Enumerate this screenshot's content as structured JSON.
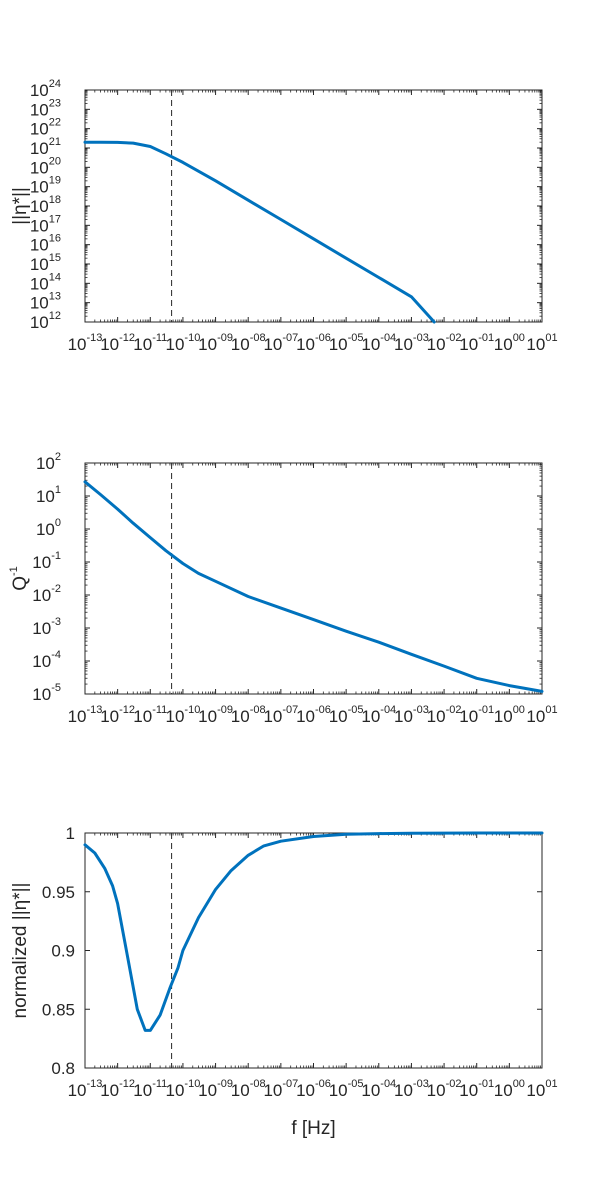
{
  "colors": {
    "series": "#0072bd",
    "axis": "#262626",
    "marker": "#262626",
    "background": "#ffffff"
  },
  "chart_data": [
    {
      "type": "line",
      "xscale": "log",
      "yscale": "log",
      "xlim": [
        1e-13,
        10
      ],
      "ylim": [
        1000000000000.0,
        1e+24
      ],
      "xlabel": "",
      "ylabel": "||η*||",
      "grid": false,
      "vertical_line_x": 4.5e-11,
      "x_tick_labels": [
        "10",
        "10",
        "10",
        "10",
        "10",
        "10",
        "10",
        "10",
        "10",
        "10",
        "10",
        "10",
        "10",
        "10",
        "10"
      ],
      "x_tick_exponents": [
        "-13",
        "-12",
        "-11",
        "-10",
        "-09",
        "-08",
        "-07",
        "-06",
        "-05",
        "-04",
        "-03",
        "-02",
        "-01",
        "00",
        "01"
      ],
      "y_tick_labels": [
        "10",
        "10",
        "10",
        "10",
        "10",
        "10",
        "10",
        "10",
        "10",
        "10",
        "10",
        "10",
        "10"
      ],
      "y_tick_exponents": [
        "12",
        "13",
        "14",
        "15",
        "16",
        "17",
        "18",
        "19",
        "20",
        "21",
        "22",
        "23",
        "24"
      ],
      "series": [
        {
          "x": [
            1e-13,
            3e-13,
            1e-12,
            3e-12,
            1e-11,
            3e-11,
            1e-10,
            1e-09,
            1e-08,
            1e-07,
            1e-06,
            1e-05,
            0.0001,
            0.001,
            0.005
          ],
          "y": [
            2e+21,
            2e+21,
            1.95e+21,
            1.8e+21,
            1.2e+21,
            5e+20,
            1.8e+20,
            2e+19,
            2e+18,
            2e+17,
            2e+16,
            2000000000000000.0,
            200000000000000.0,
            20000000000000.0,
            1000000000000.0
          ]
        }
      ]
    },
    {
      "type": "line",
      "xscale": "log",
      "yscale": "log",
      "xlim": [
        1e-13,
        10
      ],
      "ylim": [
        1e-05,
        100
      ],
      "xlabel": "",
      "ylabel": "Q",
      "ylabel_exponent": "-1",
      "grid": false,
      "vertical_line_x": 4.5e-11,
      "x_tick_labels": [
        "10",
        "10",
        "10",
        "10",
        "10",
        "10",
        "10",
        "10",
        "10",
        "10",
        "10",
        "10",
        "10",
        "10",
        "10"
      ],
      "x_tick_exponents": [
        "-13",
        "-12",
        "-11",
        "-10",
        "-09",
        "-08",
        "-07",
        "-06",
        "-05",
        "-04",
        "-03",
        "-02",
        "-01",
        "00",
        "01"
      ],
      "y_tick_labels": [
        "10",
        "10",
        "10",
        "10",
        "10",
        "10",
        "10",
        "10"
      ],
      "y_tick_exponents": [
        "-5",
        "-4",
        "-3",
        "-2",
        "-1",
        "0",
        "1",
        "2"
      ],
      "series": [
        {
          "x": [
            1e-13,
            3e-13,
            1e-12,
            3e-12,
            1e-11,
            3e-11,
            1e-10,
            3e-10,
            1e-09,
            1e-08,
            1e-07,
            1e-06,
            1e-05,
            0.0001,
            0.001,
            0.01,
            0.1,
            1,
            10
          ],
          "y": [
            27,
            11,
            4,
            1.5,
            0.55,
            0.22,
            0.09,
            0.045,
            0.026,
            0.009,
            0.004,
            0.0018,
            0.0008,
            0.00037,
            0.00016,
            7e-05,
            3e-05,
            1.8e-05,
            1.2e-05
          ]
        }
      ]
    },
    {
      "type": "line",
      "xscale": "log",
      "yscale": "linear",
      "xlim": [
        1e-13,
        10
      ],
      "ylim": [
        0.8,
        1.0
      ],
      "xlabel": "f [Hz]",
      "ylabel": "normalized ||η*||",
      "grid": false,
      "vertical_line_x": 4.5e-11,
      "x_tick_labels": [
        "10",
        "10",
        "10",
        "10",
        "10",
        "10",
        "10",
        "10",
        "10",
        "10",
        "10",
        "10",
        "10",
        "10",
        "10"
      ],
      "x_tick_exponents": [
        "-13",
        "-12",
        "-11",
        "-10",
        "-09",
        "-08",
        "-07",
        "-06",
        "-05",
        "-04",
        "-03",
        "-02",
        "-01",
        "00",
        "01"
      ],
      "y_ticks": [
        0.8,
        0.85,
        0.9,
        0.95,
        1.0
      ],
      "y_tick_labels": [
        "0.8",
        "0.85",
        "0.9",
        "0.95",
        "1"
      ],
      "series": [
        {
          "x": [
            1e-13,
            2e-13,
            4e-13,
            7e-13,
            1e-12,
            2e-12,
            4e-12,
            7e-12,
            1e-11,
            2e-11,
            4e-11,
            7e-11,
            1e-10,
            3e-10,
            1e-09,
            3e-09,
            1e-08,
            3e-08,
            1e-07,
            1e-06,
            1e-05,
            0.0001,
            0.001,
            0.01,
            0.1,
            1,
            10
          ],
          "y": [
            0.99,
            0.983,
            0.97,
            0.955,
            0.94,
            0.895,
            0.85,
            0.832,
            0.832,
            0.845,
            0.868,
            0.885,
            0.9,
            0.928,
            0.952,
            0.968,
            0.981,
            0.989,
            0.993,
            0.997,
            0.999,
            0.9995,
            0.9998,
            0.9999,
            1.0,
            1.0,
            1.0
          ]
        }
      ]
    }
  ]
}
